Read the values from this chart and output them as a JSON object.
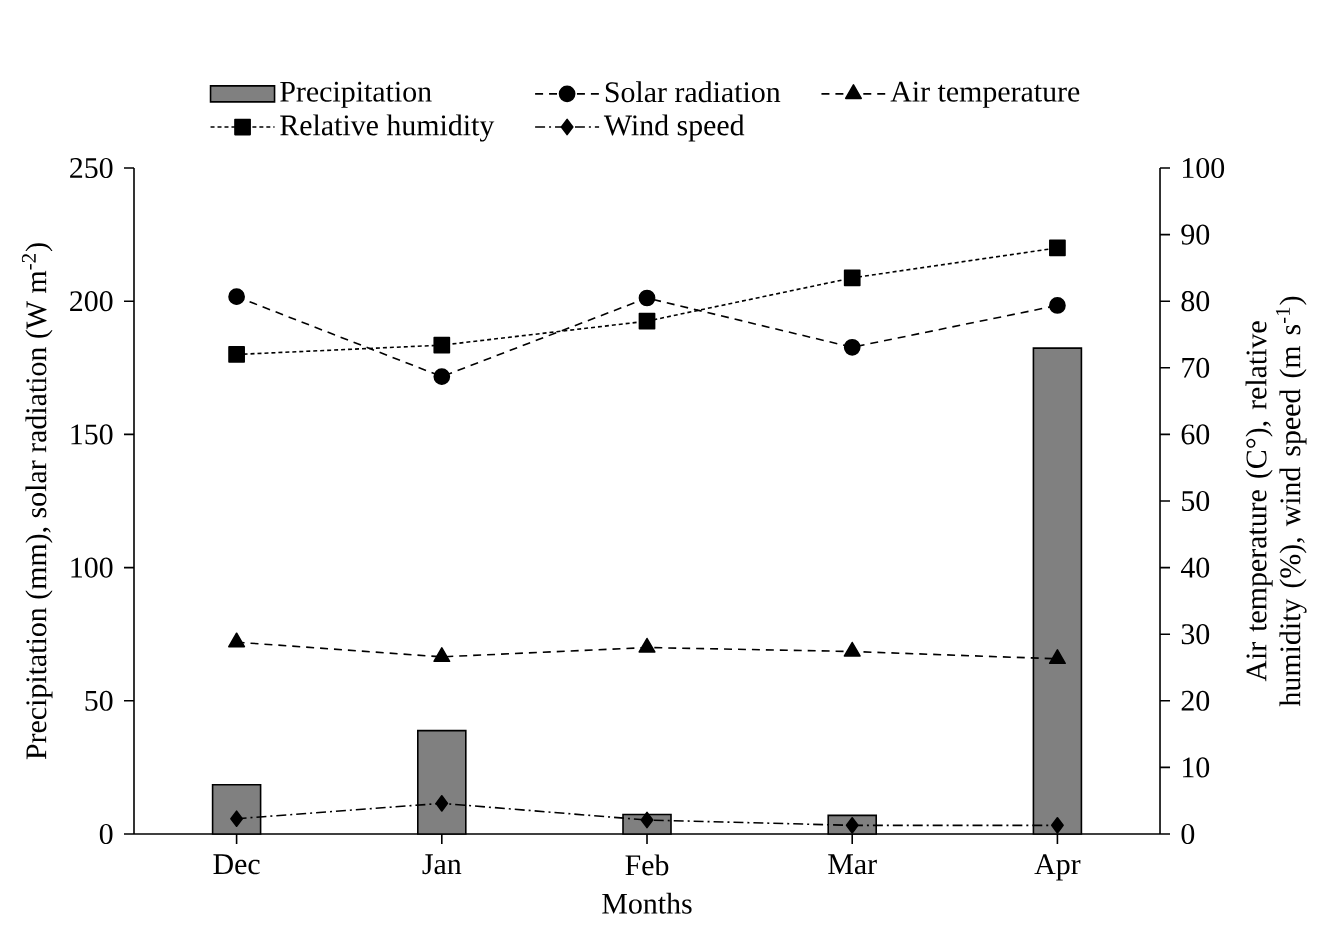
{
  "chart_data": {
    "type": "line",
    "xlabel": "Months",
    "ylabel": "Precipitation (mm), solar radiation (W m$^{-2}$)",
    "y2label": "Air temperature (C°), relative humidity (%), wind speed (m s$^{-1}$)",
    "categories": [
      "Dec",
      "Jan",
      "Feb",
      "Mar",
      "Apr"
    ],
    "series": [
      {
        "name": "Precipitation",
        "type": "bar",
        "color": "#808080",
        "values": [
          18.5,
          38.8,
          7.3,
          7,
          182.4
        ]
      },
      {
        "name": "Solar radiation",
        "color": "#000000",
        "marker": "circle",
        "line_style": "dashed",
        "values": [
          201.7,
          171.7,
          201.2,
          182.7,
          198.4
        ]
      },
      {
        "name": "Air temperature",
        "color": "#000000",
        "marker": "triangle",
        "line_style": "dashed",
        "axis": "y2",
        "values": [
          28.8,
          26.6,
          28.0,
          27.4,
          26.3
        ]
      },
      {
        "name": "Relative humidity",
        "color": "#000000",
        "marker": "square",
        "line_style": "dotted",
        "axis": "y2",
        "values": [
          72.0,
          73.4,
          77.0,
          83.5,
          88.0
        ]
      },
      {
        "name": "Wind speed",
        "color": "#000000",
        "marker": "diamond",
        "line_style": "dashdotted",
        "axis": "y2",
        "values": [
          2.3,
          4.6,
          2.1,
          1.3,
          1.3
        ]
      }
    ],
    "ylim": [
      0,
      250
    ],
    "yticks": [
      0,
      50,
      100,
      150,
      200,
      250
    ],
    "y2lim": [
      0,
      100
    ],
    "y2ticks": [
      0,
      10,
      20,
      30,
      40,
      50,
      60,
      70,
      80,
      90,
      100
    ],
    "legend": "top",
    "grid": false
  }
}
